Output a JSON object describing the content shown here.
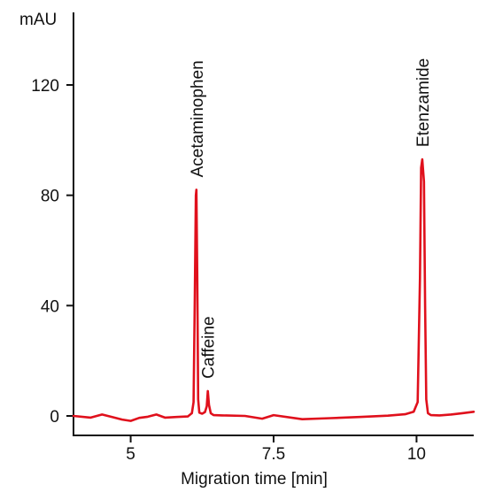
{
  "chart_data": {
    "type": "line",
    "title": "",
    "xlabel": "Migration time [min]",
    "ylabel": "mAU",
    "xlim": [
      4,
      11
    ],
    "ylim": [
      -7,
      145
    ],
    "x_ticks": [
      5,
      7.5,
      10
    ],
    "y_ticks": [
      0,
      40,
      80,
      120
    ],
    "grid": false,
    "legend": "none",
    "series": [
      {
        "color": "#e0101c",
        "x": [
          4.0,
          4.3,
          4.5,
          4.7,
          4.85,
          5.0,
          5.15,
          5.3,
          5.45,
          5.6,
          5.8,
          6.0,
          6.07,
          6.1,
          6.12,
          6.14,
          6.15,
          6.165,
          6.18,
          6.2,
          6.25,
          6.3,
          6.33,
          6.35,
          6.37,
          6.4,
          6.45,
          6.6,
          7.0,
          7.3,
          7.5,
          8.0,
          8.5,
          9.0,
          9.5,
          9.8,
          9.95,
          10.02,
          10.06,
          10.08,
          10.1,
          10.13,
          10.15,
          10.17,
          10.2,
          10.25,
          10.4,
          10.6,
          10.8,
          11.0
        ],
        "y": [
          0,
          -0.6,
          0.5,
          -0.5,
          -1.3,
          -1.8,
          -0.7,
          -0.3,
          0.5,
          -0.6,
          -0.4,
          -0.2,
          1.0,
          5.0,
          40.0,
          80.0,
          82.0,
          50.0,
          6.0,
          1.2,
          0.8,
          1.4,
          3.5,
          9.0,
          4.0,
          1.0,
          0.3,
          0.2,
          0.0,
          -1.0,
          0.3,
          -1.2,
          -0.8,
          -0.4,
          0.1,
          0.6,
          1.5,
          5.0,
          50.0,
          90.0,
          93.0,
          85.0,
          40.0,
          6.0,
          1.0,
          0.3,
          0.2,
          0.5,
          1.0,
          1.5
        ]
      }
    ],
    "annotations": [
      {
        "text": "Acetaminophen",
        "x": 6.15,
        "y": 82
      },
      {
        "text": "Caffeine",
        "x": 6.35,
        "y": 9
      },
      {
        "text": "Etenzamide",
        "x": 10.1,
        "y": 93
      }
    ]
  }
}
